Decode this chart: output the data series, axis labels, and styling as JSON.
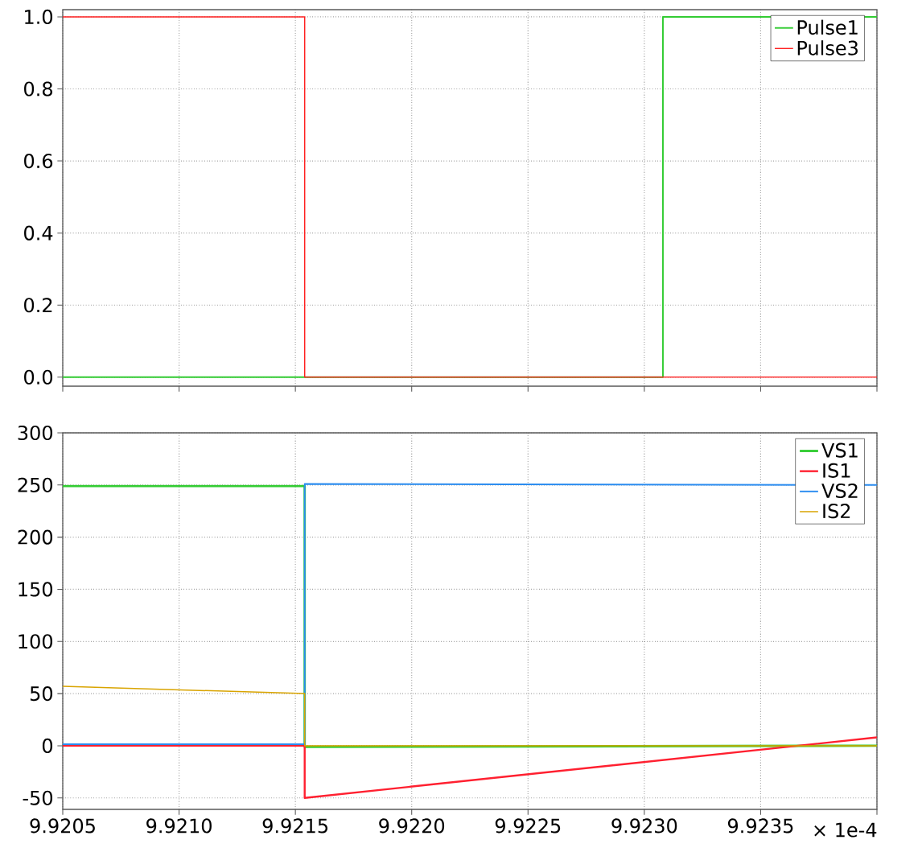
{
  "chart_data": [
    {
      "type": "step",
      "xlim": [
        9.9205,
        9.924
      ],
      "ylim": [
        -0.025,
        1.02
      ],
      "xticks": [
        {
          "value": 9.9205,
          "label": null
        },
        {
          "value": 9.921,
          "label": null
        },
        {
          "value": 9.9215,
          "label": null
        },
        {
          "value": 9.922,
          "label": null
        },
        {
          "value": 9.9225,
          "label": null
        },
        {
          "value": 9.923,
          "label": null
        },
        {
          "value": 9.9235,
          "label": null
        },
        {
          "value": 9.924,
          "label": null
        }
      ],
      "yticks": [
        {
          "value": 0,
          "label": "0.0"
        },
        {
          "value": 0.2,
          "label": "0.2"
        },
        {
          "value": 0.4,
          "label": "0.4"
        },
        {
          "value": 0.6,
          "label": "0.6"
        },
        {
          "value": 0.8,
          "label": "0.8"
        },
        {
          "value": 1,
          "label": "1.0"
        }
      ],
      "tick_labels": "y",
      "grid": true,
      "legend": "top right",
      "series": [
        {
          "name": "Pulse1",
          "color": "#33cc33",
          "x": [
            9.9205,
            9.92308,
            9.924
          ],
          "values": [
            0,
            1,
            1
          ]
        },
        {
          "name": "Pulse3",
          "color": "#ff2020",
          "x": [
            9.9205,
            9.92154,
            9.924
          ],
          "values": [
            1,
            0,
            0
          ]
        }
      ]
    },
    {
      "type": "line",
      "xlim": [
        9.9205,
        9.924
      ],
      "ylim": [
        -61,
        300
      ],
      "xlabel": "× 1e-4",
      "xticks": [
        9.9205,
        {
          "value": 9.921,
          "label": "9.9210"
        },
        9.9215,
        {
          "value": 9.922,
          "label": "9.9220"
        },
        9.9225,
        {
          "value": 9.923,
          "label": "9.9230"
        },
        9.9235,
        {
          "value": 9.924,
          "label": null
        }
      ],
      "yticks": [
        -50,
        0,
        50,
        100,
        150,
        200,
        250,
        300
      ],
      "grid": true,
      "legend": "top right",
      "series": [
        {
          "name": "VS1",
          "color": "#33cc33",
          "x": [
            9.9205,
            9.92154,
            9.92154,
            9.924
          ],
          "values": [
            249,
            249,
            -1,
            0
          ]
        },
        {
          "name": "IS1",
          "color": "#ff2030",
          "x": [
            9.9205,
            9.92154,
            9.92154,
            9.924
          ],
          "values": [
            0,
            0,
            -50,
            8
          ]
        },
        {
          "name": "VS2",
          "color": "#2a8cf0",
          "x": [
            9.9205,
            9.92154,
            9.92154,
            9.924
          ],
          "values": [
            1.5,
            1.5,
            251,
            250
          ]
        },
        {
          "name": "IS2",
          "color": "#d9a400",
          "x": [
            9.9205,
            9.92154,
            9.92154,
            9.924
          ],
          "values": [
            57,
            50,
            0,
            0
          ]
        }
      ]
    }
  ]
}
